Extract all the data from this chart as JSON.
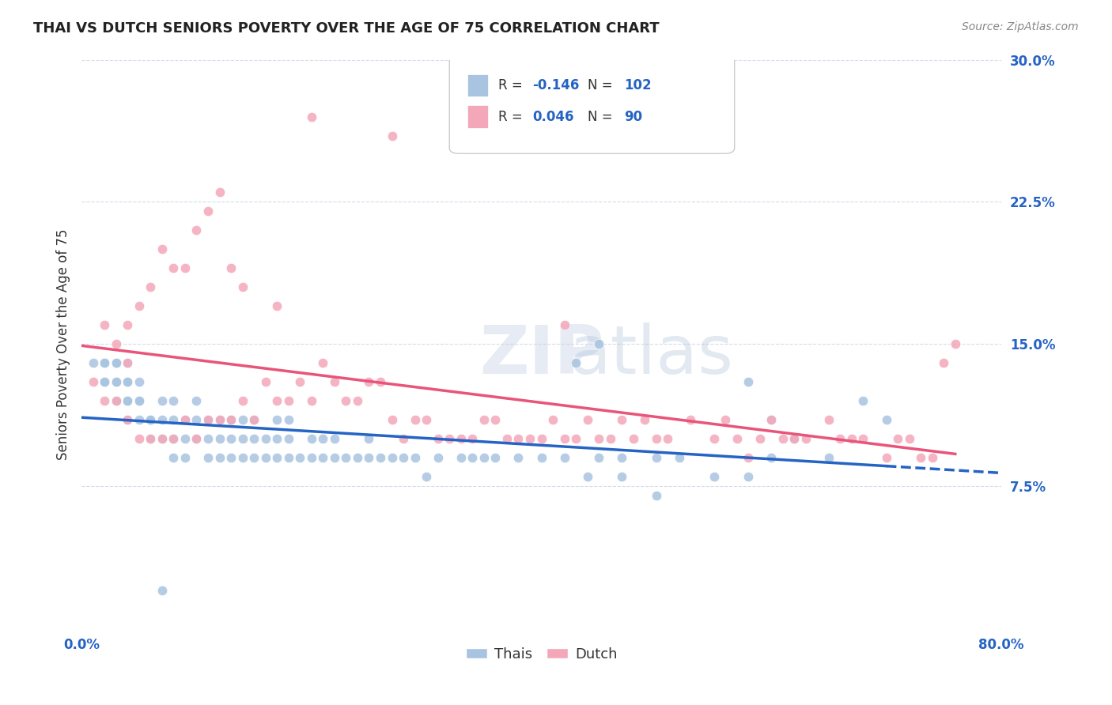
{
  "title": "THAI VS DUTCH SENIORS POVERTY OVER THE AGE OF 75 CORRELATION CHART",
  "source": "Source: ZipAtlas.com",
  "xlabel_ticks": [
    "0.0%",
    "80.0%"
  ],
  "ylabel": "Seniors Poverty Over the Age of 75",
  "ylabel_ticks": [
    "7.5%",
    "15.0%",
    "22.5%",
    "30.0%"
  ],
  "xlim": [
    0.0,
    0.8
  ],
  "ylim": [
    0.0,
    0.3
  ],
  "thai_color": "#a8c4e0",
  "dutch_color": "#f4a7b9",
  "thai_line_color": "#2563c4",
  "dutch_line_color": "#e8547a",
  "thai_R": -0.146,
  "thai_N": 102,
  "dutch_R": 0.046,
  "dutch_N": 90,
  "background_color": "#ffffff",
  "grid_color": "#d0d8e8",
  "watermark": "ZIPatlas",
  "thai_scatter_x": [
    0.01,
    0.02,
    0.02,
    0.02,
    0.02,
    0.03,
    0.03,
    0.03,
    0.03,
    0.03,
    0.04,
    0.04,
    0.04,
    0.04,
    0.04,
    0.04,
    0.05,
    0.05,
    0.05,
    0.05,
    0.06,
    0.06,
    0.06,
    0.07,
    0.07,
    0.07,
    0.08,
    0.08,
    0.08,
    0.08,
    0.09,
    0.09,
    0.09,
    0.1,
    0.1,
    0.1,
    0.11,
    0.11,
    0.11,
    0.12,
    0.12,
    0.12,
    0.13,
    0.13,
    0.13,
    0.14,
    0.14,
    0.14,
    0.15,
    0.15,
    0.15,
    0.16,
    0.16,
    0.17,
    0.17,
    0.17,
    0.18,
    0.18,
    0.18,
    0.19,
    0.2,
    0.2,
    0.21,
    0.21,
    0.22,
    0.22,
    0.23,
    0.24,
    0.25,
    0.25,
    0.26,
    0.27,
    0.28,
    0.29,
    0.3,
    0.31,
    0.33,
    0.34,
    0.35,
    0.36,
    0.38,
    0.4,
    0.42,
    0.44,
    0.45,
    0.47,
    0.5,
    0.52,
    0.55,
    0.58,
    0.6,
    0.62,
    0.65,
    0.68,
    0.7,
    0.58,
    0.6,
    0.43,
    0.45,
    0.47,
    0.5,
    0.07
  ],
  "thai_scatter_y": [
    0.14,
    0.13,
    0.13,
    0.14,
    0.14,
    0.12,
    0.13,
    0.13,
    0.14,
    0.14,
    0.11,
    0.12,
    0.12,
    0.13,
    0.13,
    0.14,
    0.11,
    0.12,
    0.12,
    0.13,
    0.1,
    0.11,
    0.11,
    0.1,
    0.11,
    0.12,
    0.09,
    0.1,
    0.11,
    0.12,
    0.09,
    0.1,
    0.11,
    0.1,
    0.11,
    0.12,
    0.09,
    0.1,
    0.11,
    0.09,
    0.1,
    0.11,
    0.09,
    0.1,
    0.11,
    0.09,
    0.1,
    0.11,
    0.09,
    0.1,
    0.11,
    0.09,
    0.1,
    0.09,
    0.1,
    0.11,
    0.09,
    0.1,
    0.11,
    0.09,
    0.09,
    0.1,
    0.09,
    0.1,
    0.09,
    0.1,
    0.09,
    0.09,
    0.09,
    0.1,
    0.09,
    0.09,
    0.09,
    0.09,
    0.08,
    0.09,
    0.09,
    0.09,
    0.09,
    0.09,
    0.09,
    0.09,
    0.09,
    0.08,
    0.09,
    0.08,
    0.09,
    0.09,
    0.08,
    0.08,
    0.09,
    0.1,
    0.09,
    0.12,
    0.11,
    0.13,
    0.11,
    0.14,
    0.15,
    0.09,
    0.07,
    0.02
  ],
  "dutch_scatter_x": [
    0.01,
    0.02,
    0.02,
    0.03,
    0.03,
    0.04,
    0.04,
    0.04,
    0.05,
    0.05,
    0.06,
    0.06,
    0.07,
    0.07,
    0.08,
    0.08,
    0.09,
    0.09,
    0.1,
    0.1,
    0.11,
    0.11,
    0.12,
    0.12,
    0.13,
    0.13,
    0.14,
    0.14,
    0.15,
    0.16,
    0.17,
    0.17,
    0.18,
    0.19,
    0.2,
    0.21,
    0.22,
    0.23,
    0.24,
    0.25,
    0.26,
    0.27,
    0.28,
    0.29,
    0.3,
    0.31,
    0.32,
    0.33,
    0.34,
    0.35,
    0.36,
    0.37,
    0.38,
    0.39,
    0.4,
    0.41,
    0.42,
    0.43,
    0.44,
    0.45,
    0.46,
    0.47,
    0.48,
    0.49,
    0.5,
    0.51,
    0.53,
    0.55,
    0.56,
    0.57,
    0.58,
    0.59,
    0.6,
    0.61,
    0.62,
    0.63,
    0.65,
    0.66,
    0.67,
    0.68,
    0.7,
    0.71,
    0.72,
    0.73,
    0.74,
    0.75,
    0.76,
    0.42,
    0.2,
    0.27
  ],
  "dutch_scatter_y": [
    0.13,
    0.12,
    0.16,
    0.12,
    0.15,
    0.11,
    0.14,
    0.16,
    0.1,
    0.17,
    0.1,
    0.18,
    0.1,
    0.2,
    0.1,
    0.19,
    0.11,
    0.19,
    0.1,
    0.21,
    0.11,
    0.22,
    0.11,
    0.23,
    0.11,
    0.19,
    0.12,
    0.18,
    0.11,
    0.13,
    0.12,
    0.17,
    0.12,
    0.13,
    0.12,
    0.14,
    0.13,
    0.12,
    0.12,
    0.13,
    0.13,
    0.11,
    0.1,
    0.11,
    0.11,
    0.1,
    0.1,
    0.1,
    0.1,
    0.11,
    0.11,
    0.1,
    0.1,
    0.1,
    0.1,
    0.11,
    0.1,
    0.1,
    0.11,
    0.1,
    0.1,
    0.11,
    0.1,
    0.11,
    0.1,
    0.1,
    0.11,
    0.1,
    0.11,
    0.1,
    0.09,
    0.1,
    0.11,
    0.1,
    0.1,
    0.1,
    0.11,
    0.1,
    0.1,
    0.1,
    0.09,
    0.1,
    0.1,
    0.09,
    0.09,
    0.14,
    0.15,
    0.16,
    0.27,
    0.26
  ]
}
